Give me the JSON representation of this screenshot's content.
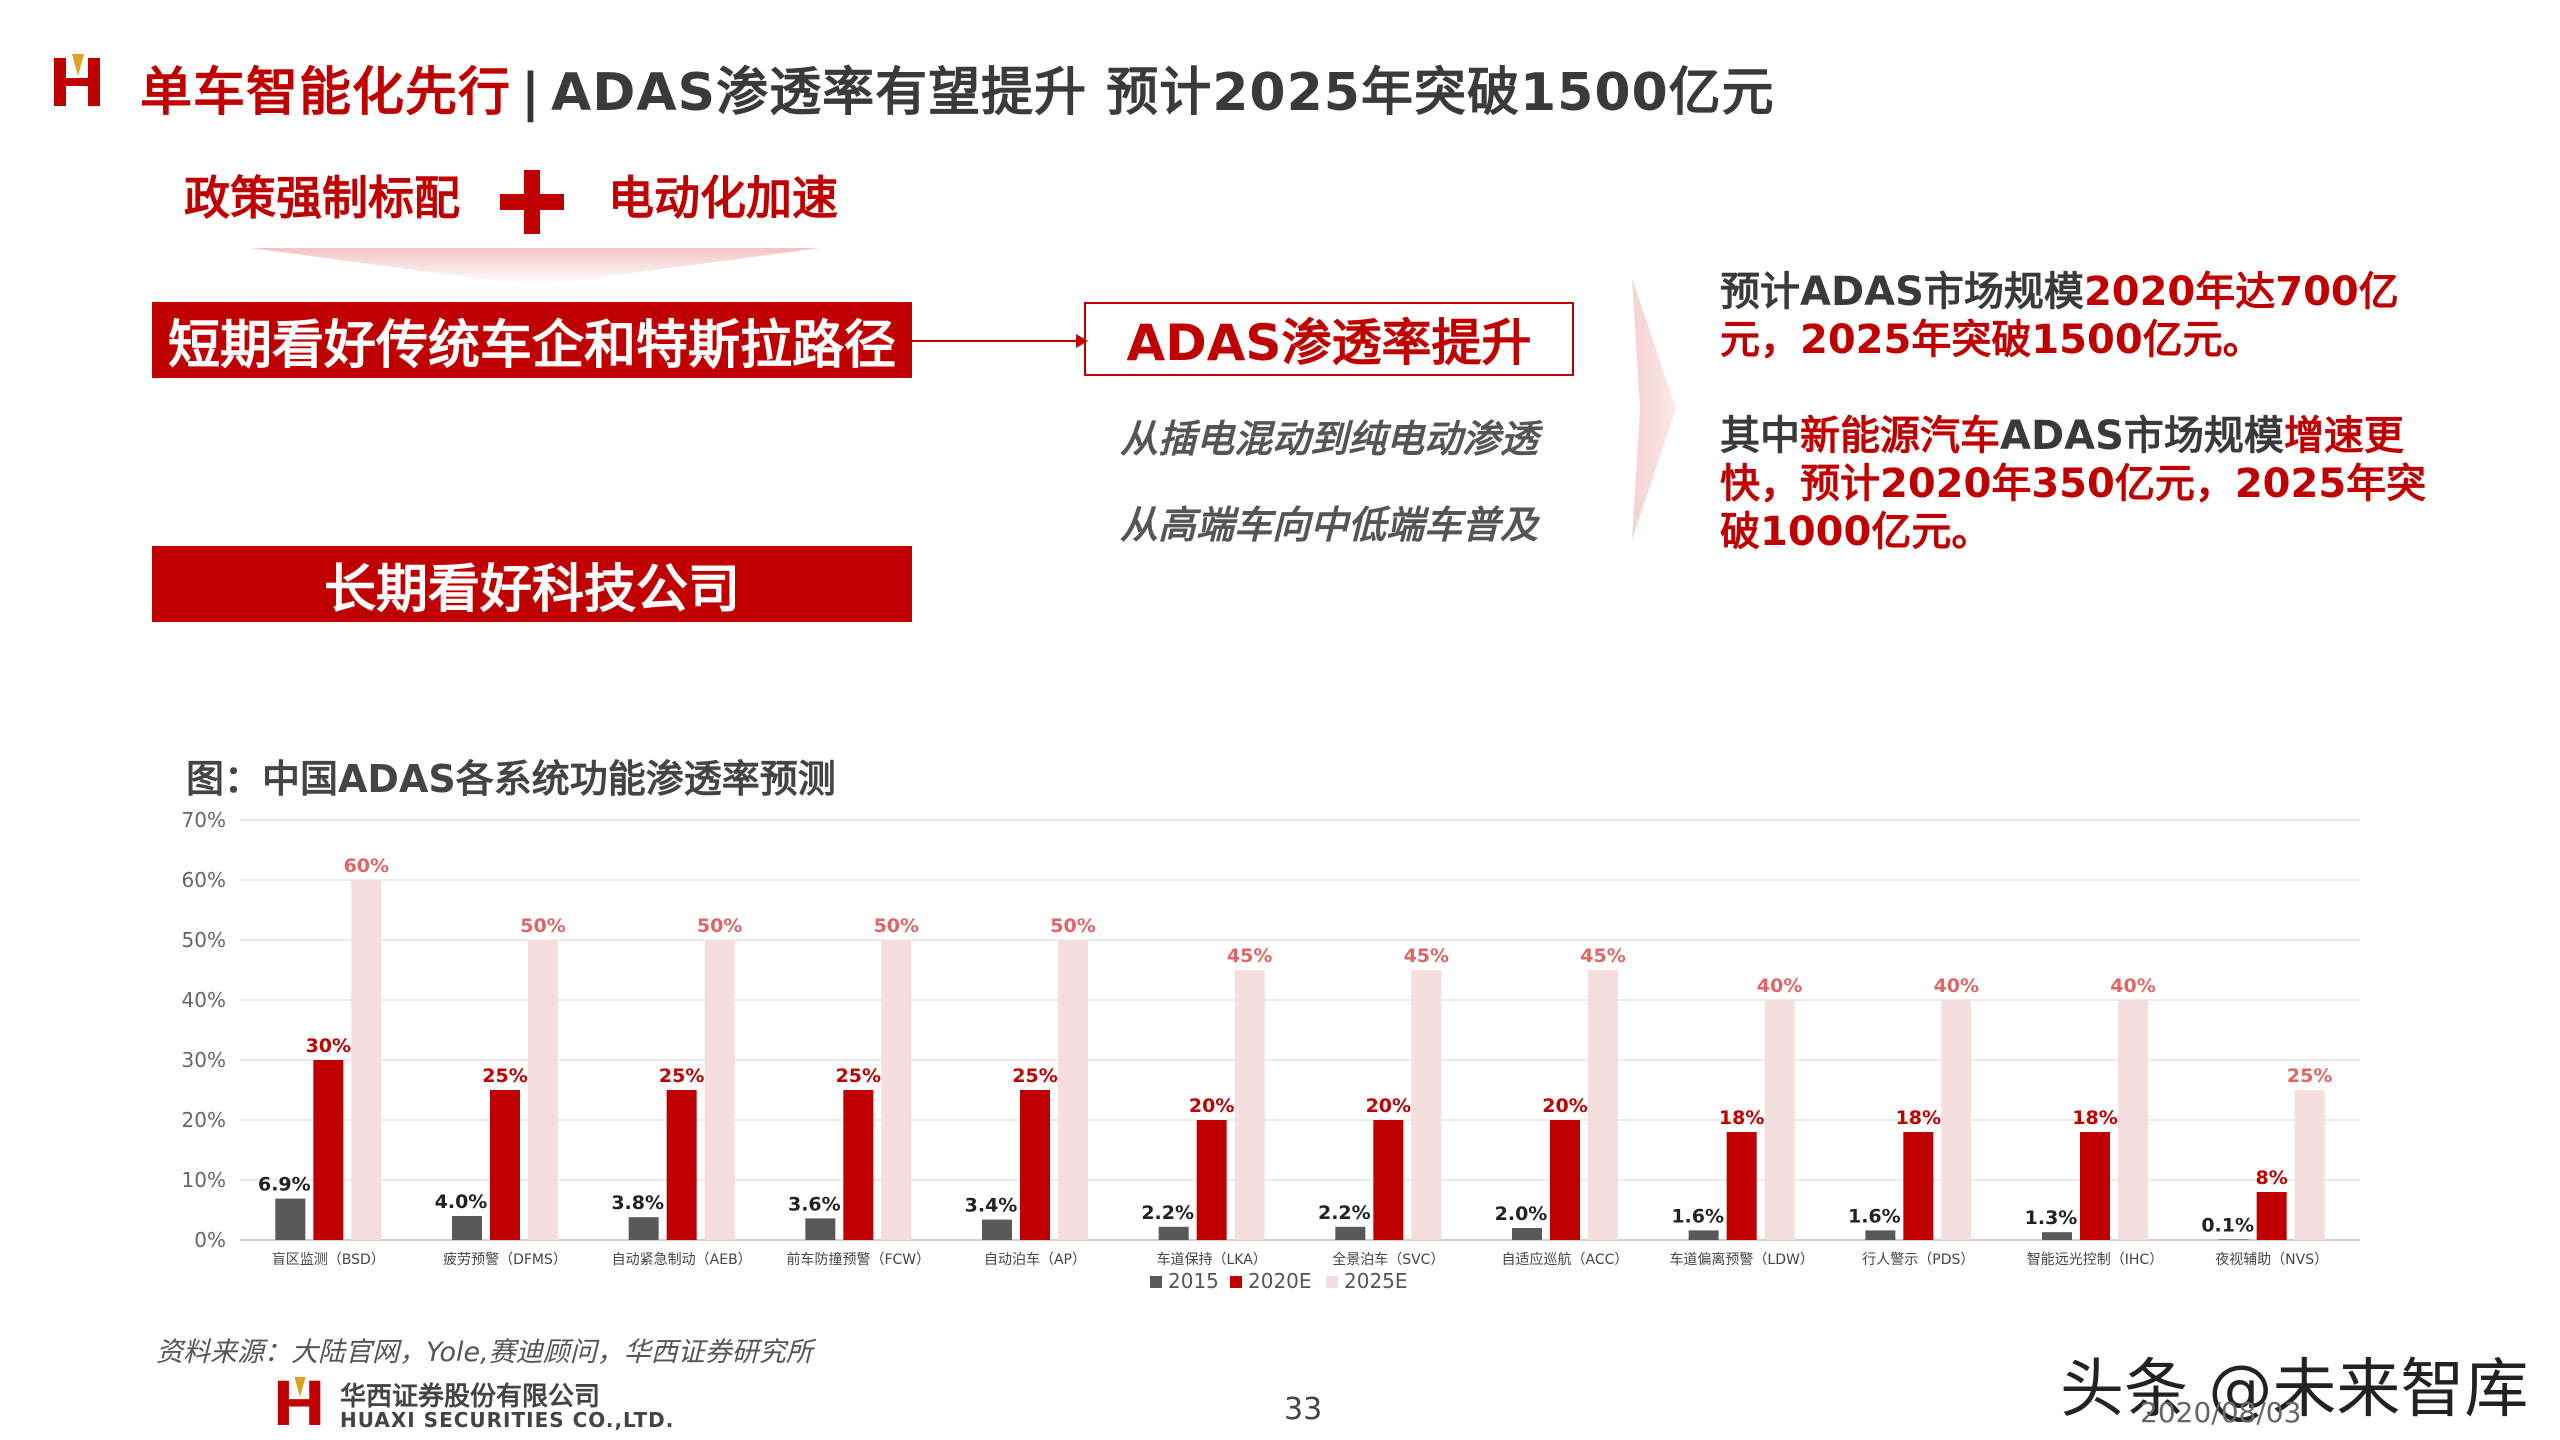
{
  "header": {
    "title_red": "单车智能化先行",
    "title_sep": "|",
    "title_rest": "ADAS渗透率有望提升  预计2025年突破1500亿元"
  },
  "policy": {
    "left": "政策强制标配",
    "right": "电动化加速"
  },
  "boxes": {
    "short_term": "短期看好传统车企和特斯拉路径",
    "long_term": "长期看好科技公司",
    "adas_rise": "ADAS渗透率提升",
    "line1": "从插电混动到纯电动渗透",
    "line2": "从高端车向中低端车普及"
  },
  "right_text": {
    "p1_a": "预计ADAS市场规模",
    "p1_b": "2020年达700亿元，2025年突破1500亿元。",
    "p2_a": "其中",
    "p2_b": "新能源汽车",
    "p2_c": "ADAS市场规模",
    "p2_d": "增速更快，预计2020年350亿元，2025年突破1000亿元。"
  },
  "chart_title": "图：中国ADAS各系统功能渗透率预测",
  "chart_data": {
    "type": "bar",
    "title": "图：中国ADAS各系统功能渗透率预测",
    "categories": [
      "盲区监测（BSD）",
      "疲劳预警（DFMS）",
      "自动紧急制动（AEB）",
      "前车防撞预警（FCW）",
      "自动泊车（AP）",
      "车道保持（LKA）",
      "全景泊车（SVC）",
      "自适应巡航（ACC）",
      "车道偏离预警（LDW）",
      "行人警示（PDS）",
      "智能远光控制（IHC）",
      "夜视辅助（NVS）"
    ],
    "series": [
      {
        "name": "2015",
        "color": "#595959",
        "values": [
          6.9,
          4.0,
          3.8,
          3.6,
          3.4,
          2.2,
          2.2,
          2.0,
          1.6,
          1.6,
          1.3,
          0.1
        ],
        "labels": [
          "6.9%",
          "4.0%",
          "3.8%",
          "3.6%",
          "3.4%",
          "2.2%",
          "2.2%",
          "2.0%",
          "1.6%",
          "1.6%",
          "1.3%",
          "0.1%"
        ]
      },
      {
        "name": "2020E",
        "color": "#c00000",
        "values": [
          30,
          25,
          25,
          25,
          25,
          20,
          20,
          20,
          18,
          18,
          18,
          8
        ],
        "labels": [
          "30%",
          "25%",
          "25%",
          "25%",
          "25%",
          "20%",
          "20%",
          "20%",
          "18%",
          "18%",
          "18%",
          "8%"
        ]
      },
      {
        "name": "2025E",
        "color": "#f4dede",
        "values": [
          60,
          50,
          50,
          50,
          50,
          45,
          45,
          45,
          40,
          40,
          40,
          25
        ],
        "labels": [
          "60%",
          "50%",
          "50%",
          "50%",
          "50%",
          "45%",
          "45%",
          "45%",
          "40%",
          "40%",
          "40%",
          "25%"
        ]
      }
    ],
    "ylim": [
      0,
      70
    ],
    "yticks": [
      "0%",
      "10%",
      "20%",
      "30%",
      "40%",
      "50%",
      "60%",
      "70%"
    ],
    "grid": true,
    "legend": "bottom",
    "label_colors": {
      "2015": "#222222",
      "2020E": "#c00000",
      "2025E": "#e06666"
    }
  },
  "footer": {
    "source": "资料来源：大陆官网，Yole,赛迪顾问，华西证券研究所",
    "company_cn": "华西证券股份有限公司",
    "company_en": "HUAXI SECURITIES CO.,LTD.",
    "page": "33",
    "watermark": "头条 @未来智库",
    "date": "2020/08/03"
  }
}
